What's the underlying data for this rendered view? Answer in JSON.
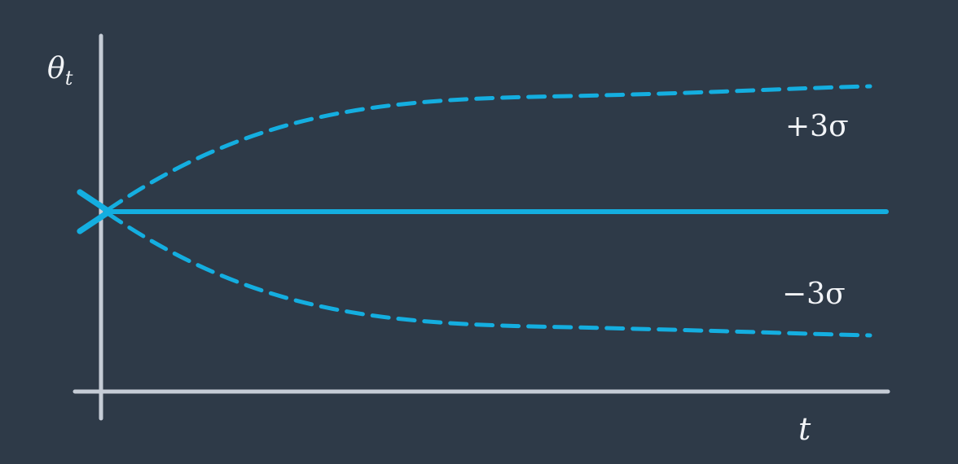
{
  "labels": {
    "y_axis_symbol": "θ",
    "y_axis_subscript": "t",
    "x_axis_symbol": "t",
    "upper_band": "+3σ",
    "lower_band": "−3σ"
  },
  "colors": {
    "background": "#2e3a48",
    "axis": "#c5ccd6",
    "curve": "#14aee0",
    "text": "#f2f4f7"
  }
}
